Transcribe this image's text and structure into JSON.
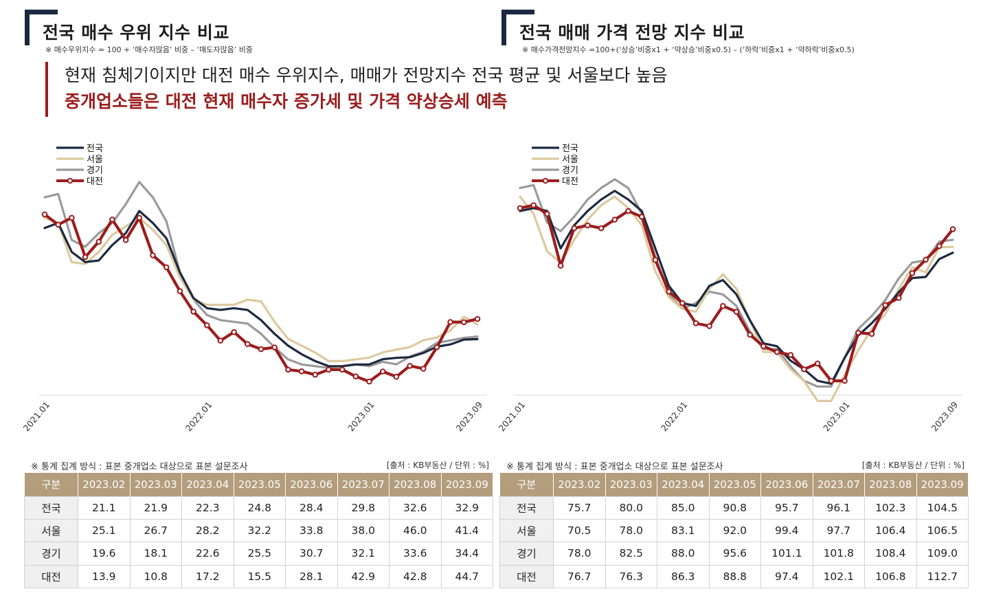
{
  "left_panel": {
    "title": "전국 매수 우위 지수 비교",
    "note": "※ 매수우위지수 = 100 + ‘매수자많음’ 비중 – ‘매도자많음’ 비중"
  },
  "right_panel": {
    "title": "전국 매매 가격 전망 지수 비교",
    "note": "※ 매수가격전망지수 =100+(‘상승’비중x1 + ‘약상승’비중x0.5) – (‘하락’비중x1 + ‘약하락’비중x0.5)"
  },
  "headline": {
    "line1": "현재 침체기이지만 대전 매수 우위지수, 매매가 전망지수 전국 평균 및 서울보다 높음",
    "line2": "중개업소들은 대전 현재 매수자 증가세 및 가격 약상승세 예측"
  },
  "colors": {
    "national": "#1b2940",
    "seoul": "#dcc99e",
    "gyeonggi": "#9a9a9a",
    "daejeon": "#9c1c1c",
    "header_bg": "#b39d7d",
    "accent": "#9c1c1c"
  },
  "chart_data": [
    {
      "type": "line",
      "title": "전국 매수 우위 지수 비교",
      "x_ticks": [
        "2021.01",
        "2022.01",
        "2023.01",
        "2023.09"
      ],
      "x": [
        "2021.01",
        "2021.02",
        "2021.03",
        "2021.04",
        "2021.05",
        "2021.06",
        "2021.07",
        "2021.08",
        "2021.09",
        "2021.10",
        "2021.11",
        "2021.12",
        "2022.01",
        "2022.02",
        "2022.03",
        "2022.04",
        "2022.05",
        "2022.06",
        "2022.07",
        "2022.08",
        "2022.09",
        "2022.10",
        "2022.11",
        "2022.12",
        "2023.01",
        "2023.02",
        "2023.03",
        "2023.04",
        "2023.05",
        "2023.06",
        "2023.07",
        "2023.08",
        "2023.09"
      ],
      "ylim": [
        0,
        135
      ],
      "legend_position": "top-left",
      "grid": false,
      "series": [
        {
          "name": "전국",
          "values": [
            98,
            101,
            84,
            78,
            79,
            88,
            95,
            108,
            101,
            92,
            72,
            57,
            51,
            50,
            51,
            50,
            44,
            36,
            29,
            24,
            20,
            17,
            17,
            18,
            18,
            21.1,
            21.9,
            22.3,
            24.8,
            28.4,
            29.8,
            32.6,
            32.9
          ]
        },
        {
          "name": "서울",
          "values": [
            104,
            101,
            78,
            77,
            84,
            94,
            99,
            104,
            97,
            88,
            69,
            56,
            53,
            53,
            53,
            56,
            55,
            43,
            33,
            29,
            25,
            20,
            20,
            21,
            22,
            25.1,
            26.7,
            28.2,
            32.2,
            33.8,
            38.0,
            46.0,
            41.4
          ]
        },
        {
          "name": "경기",
          "values": [
            116,
            118,
            91,
            87,
            95,
            101,
            112,
            125,
            116,
            102,
            72,
            56,
            47,
            44,
            43,
            42,
            36,
            28,
            21,
            18,
            17,
            16,
            17,
            18,
            17,
            19.6,
            18.1,
            22.6,
            25.5,
            30.7,
            32.1,
            33.6,
            34.4
          ]
        },
        {
          "name": "대전",
          "values": [
            106,
            100,
            104,
            81,
            90,
            103,
            91,
            104,
            82,
            75,
            61,
            49,
            41,
            32,
            37,
            30,
            27,
            28,
            15,
            14,
            12,
            15,
            15,
            11,
            8,
            13.9,
            10.8,
            17.2,
            15.5,
            28.1,
            42.9,
            42.8,
            44.7
          ]
        }
      ]
    },
    {
      "type": "line",
      "title": "전국 매매 가격 전망 지수 비교",
      "x_ticks": [
        "2021.01",
        "2022.01",
        "2023.01",
        "2023.09"
      ],
      "x": [
        "2021.01",
        "2021.02",
        "2021.03",
        "2021.04",
        "2021.05",
        "2021.06",
        "2021.07",
        "2021.08",
        "2021.09",
        "2021.10",
        "2021.11",
        "2021.12",
        "2022.01",
        "2022.02",
        "2022.03",
        "2022.04",
        "2022.05",
        "2022.06",
        "2022.07",
        "2022.08",
        "2022.09",
        "2022.10",
        "2022.11",
        "2022.12",
        "2023.01",
        "2023.02",
        "2023.03",
        "2023.04",
        "2023.05",
        "2023.06",
        "2023.07",
        "2023.08",
        "2023.09"
      ],
      "ylim": [
        55,
        135
      ],
      "legend_position": "top-left",
      "grid": false,
      "series": [
        {
          "name": "전국",
          "values": [
            119,
            120,
            119,
            106,
            114,
            119,
            123,
            126,
            123,
            119,
            106,
            93,
            87,
            86,
            93,
            95,
            90,
            81,
            73,
            72,
            67,
            64,
            60,
            59,
            68,
            75.7,
            80.0,
            85.0,
            90.8,
            95.7,
            96.1,
            102.3,
            104.5
          ]
        },
        {
          "name": "서울",
          "values": [
            124,
            118,
            105,
            101,
            109,
            116,
            121,
            124,
            120,
            114,
            98,
            89,
            85,
            84,
            92,
            97,
            92,
            81,
            70,
            70,
            64,
            60,
            53,
            53,
            62,
            70.5,
            78.0,
            83.1,
            92.0,
            99.4,
            97.7,
            106.4,
            106.5
          ]
        },
        {
          "name": "경기",
          "values": [
            127,
            128,
            115,
            112,
            117,
            123,
            127,
            130,
            127,
            118,
            103,
            90,
            85,
            87,
            91,
            90,
            86,
            77,
            71,
            71,
            65,
            60,
            58,
            58,
            68,
            78.0,
            82.5,
            88.0,
            95.6,
            101.1,
            101.8,
            108.4,
            109.0
          ]
        },
        {
          "name": "대전",
          "values": [
            120,
            121,
            118,
            100,
            113,
            114,
            113,
            116,
            119,
            117,
            102,
            91,
            87,
            80,
            79,
            86,
            84,
            76,
            72,
            70,
            69,
            64,
            66,
            60,
            60,
            76.7,
            76.3,
            86.3,
            88.8,
            97.4,
            102.1,
            106.8,
            112.7
          ]
        }
      ]
    }
  ],
  "tables": [
    {
      "method": "※ 통계 집계 방식 : 표본 중개업소 대상으로 표본 설문조사",
      "source": "[출처 : KB부동산 / 단위 : %]",
      "headers": [
        "구분",
        "2023.02",
        "2023.03",
        "2023.04",
        "2023.05",
        "2023.06",
        "2023.07",
        "2023.08",
        "2023.09"
      ],
      "rows": [
        [
          "전국",
          "21.1",
          "21.9",
          "22.3",
          "24.8",
          "28.4",
          "29.8",
          "32.6",
          "32.9"
        ],
        [
          "서울",
          "25.1",
          "26.7",
          "28.2",
          "32.2",
          "33.8",
          "38.0",
          "46.0",
          "41.4"
        ],
        [
          "경기",
          "19.6",
          "18.1",
          "22.6",
          "25.5",
          "30.7",
          "32.1",
          "33.6",
          "34.4"
        ],
        [
          "대전",
          "13.9",
          "10.8",
          "17.2",
          "15.5",
          "28.1",
          "42.9",
          "42.8",
          "44.7"
        ]
      ]
    },
    {
      "method": "※ 통계 집계 방식 : 표본 중개업소 대상으로 표본 설문조사",
      "source": "[출처 : KB부동산 / 단위 : %]",
      "headers": [
        "구분",
        "2023.02",
        "2023.03",
        "2023.04",
        "2023.05",
        "2023.06",
        "2023.07",
        "2023.08",
        "2023.09"
      ],
      "rows": [
        [
          "전국",
          "75.7",
          "80.0",
          "85.0",
          "90.8",
          "95.7",
          "96.1",
          "102.3",
          "104.5"
        ],
        [
          "서울",
          "70.5",
          "78.0",
          "83.1",
          "92.0",
          "99.4",
          "97.7",
          "106.4",
          "106.5"
        ],
        [
          "경기",
          "78.0",
          "82.5",
          "88.0",
          "95.6",
          "101.1",
          "101.8",
          "108.4",
          "109.0"
        ],
        [
          "대전",
          "76.7",
          "76.3",
          "86.3",
          "88.8",
          "97.4",
          "102.1",
          "106.8",
          "112.7"
        ]
      ]
    }
  ]
}
